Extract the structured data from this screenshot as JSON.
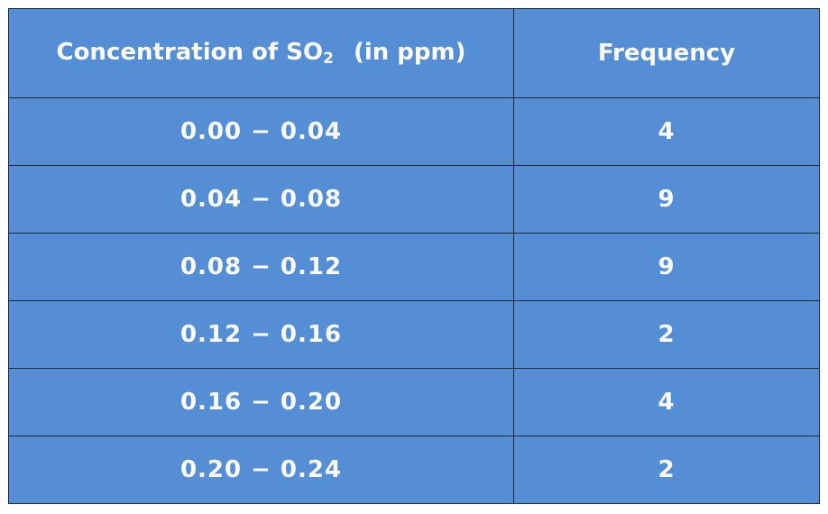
{
  "chart_data": {
    "type": "table",
    "columns": [
      {
        "main": "Concentration of SO",
        "subscript": "2",
        "unit": "(in ppm)"
      },
      {
        "main": "Frequency"
      }
    ],
    "rows": [
      {
        "from": "0.00",
        "dash": "−",
        "to": "0.04",
        "frequency": "4"
      },
      {
        "from": "0.04",
        "dash": "−",
        "to": "0.08",
        "frequency": "9"
      },
      {
        "from": "0.08",
        "dash": "−",
        "to": "0.12",
        "frequency": "9"
      },
      {
        "from": "0.12",
        "dash": "−",
        "to": "0.16",
        "frequency": "2"
      },
      {
        "from": "0.16",
        "dash": "−",
        "to": "0.20",
        "frequency": "4"
      },
      {
        "from": "0.20",
        "dash": "−",
        "to": "0.24",
        "frequency": "2"
      }
    ]
  }
}
